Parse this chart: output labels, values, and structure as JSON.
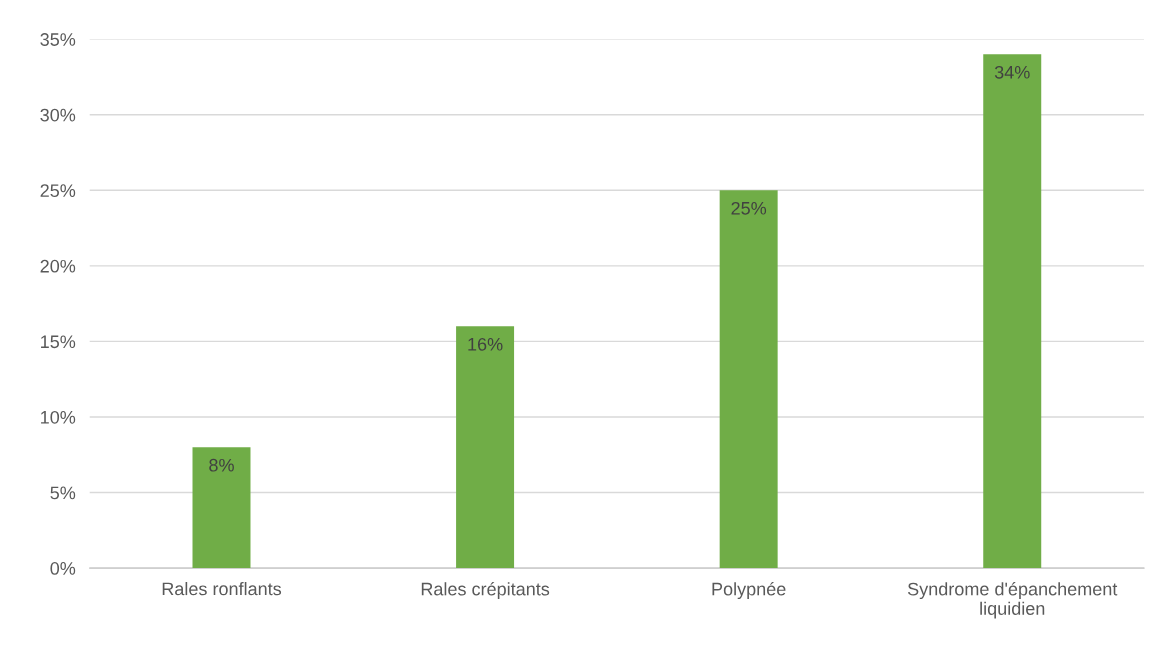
{
  "chart_data": {
    "type": "bar",
    "categories": [
      "Rales ronflants",
      "Rales crépitants",
      "Polypnée",
      "Syndrome d'épanchement\nliquidien"
    ],
    "values": [
      8,
      16,
      25,
      34
    ],
    "value_labels": [
      "8%",
      "16%",
      "25%",
      "34%"
    ],
    "color": "#70ad47",
    "ylim": [
      0,
      35
    ],
    "yticks": [
      {
        "value": 0,
        "label": "0%"
      },
      {
        "value": 5,
        "label": "5%"
      },
      {
        "value": 10,
        "label": "10%"
      },
      {
        "value": 15,
        "label": "15%"
      },
      {
        "value": 20,
        "label": "20%"
      },
      {
        "value": 25,
        "label": "25%"
      },
      {
        "value": 30,
        "label": "30%"
      },
      {
        "value": 35,
        "label": "35%"
      }
    ],
    "grid": "y"
  }
}
